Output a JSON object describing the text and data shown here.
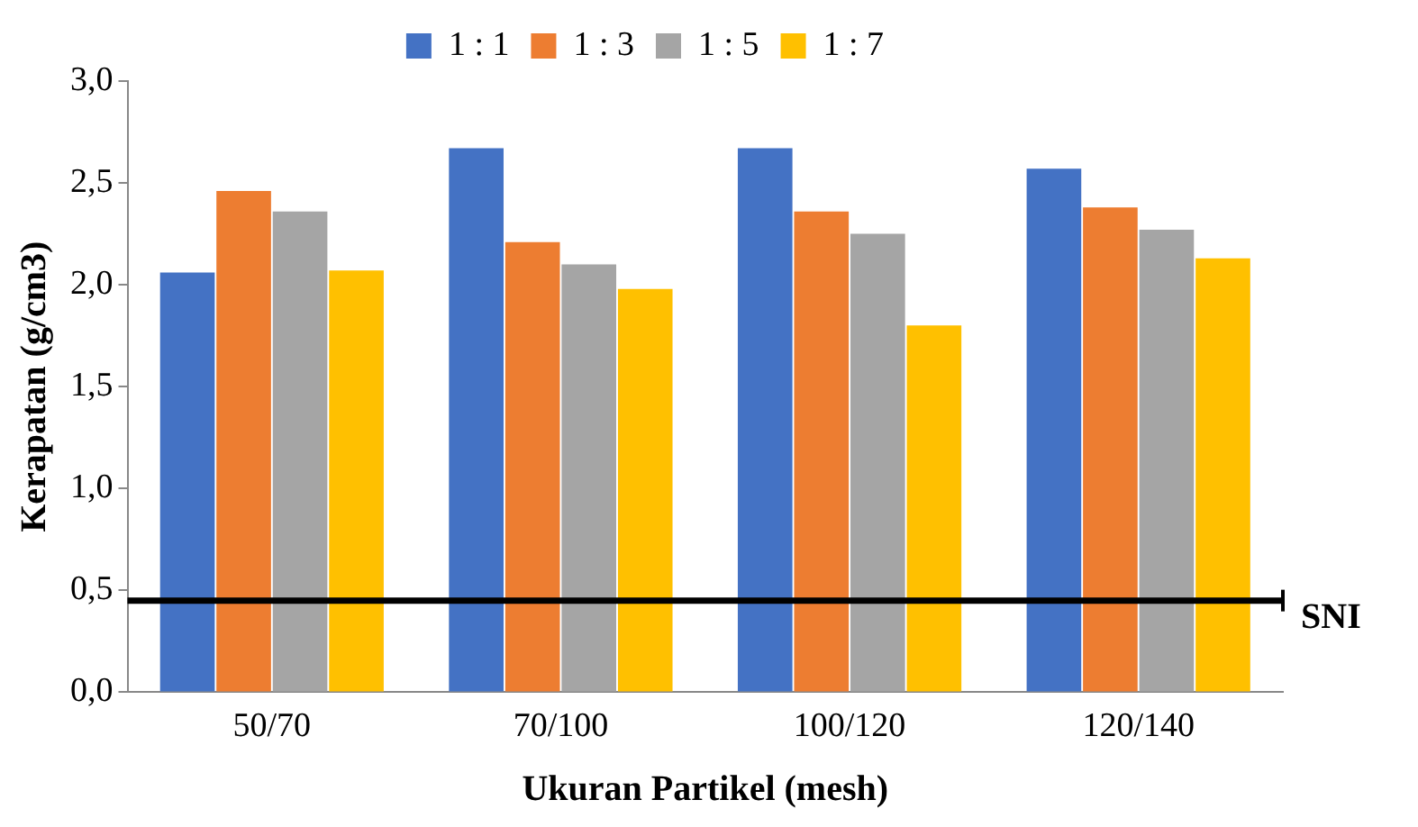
{
  "chart_data": {
    "type": "bar",
    "xlabel": "Ukuran Partikel (mesh)",
    "ylabel": "Kerapatan (g/cm3)",
    "categories": [
      "50/70",
      "70/100",
      "100/120",
      "120/140"
    ],
    "series": [
      {
        "name": "1 : 1",
        "color": "#4472c4",
        "values": [
          2.06,
          2.67,
          2.67,
          2.57
        ]
      },
      {
        "name": "1 : 3",
        "color": "#ed7d31",
        "values": [
          2.46,
          2.21,
          2.36,
          2.38
        ]
      },
      {
        "name": "1 : 5",
        "color": "#a5a5a5",
        "values": [
          2.36,
          2.1,
          2.25,
          2.27
        ]
      },
      {
        "name": "1 : 7",
        "color": "#ffc000",
        "values": [
          2.07,
          1.98,
          1.8,
          2.13
        ]
      }
    ],
    "ylim": [
      0,
      3
    ],
    "yticks": [
      {
        "value": 0,
        "label": "0,0"
      },
      {
        "value": 0.5,
        "label": "0,5"
      },
      {
        "value": 1,
        "label": "1,0"
      },
      {
        "value": 1.5,
        "label": "1,5"
      },
      {
        "value": 2,
        "label": "2,0"
      },
      {
        "value": 2.5,
        "label": "2,5"
      },
      {
        "value": 3,
        "label": "3,0"
      }
    ],
    "ref_lines": [
      {
        "axis": "y",
        "value": 0.45,
        "label": "SNI",
        "color": "#000000"
      }
    ],
    "grid": false,
    "legend": "top"
  }
}
